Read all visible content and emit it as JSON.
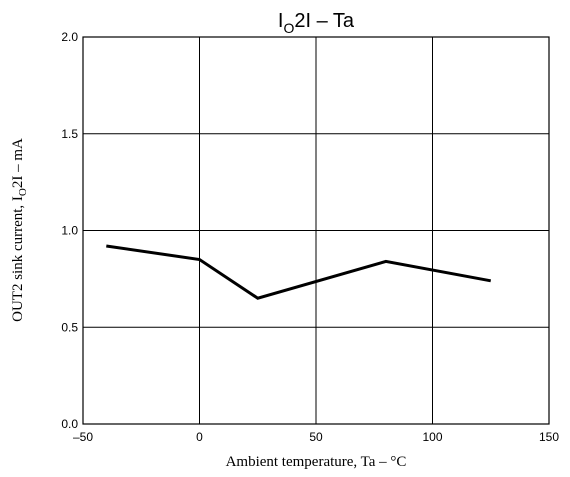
{
  "chart_data": {
    "type": "line",
    "title_parts": {
      "pre": "I",
      "sub": "O",
      "post": "2I  –  Ta"
    },
    "xlabel": "Ambient temperature,  Ta  –  °C",
    "ylabel_parts": {
      "pre": "OUT2 sink current, I",
      "sub": "O",
      "post": "2I  –  mA"
    },
    "xlim": [
      -50,
      150
    ],
    "ylim": [
      0.0,
      2.0
    ],
    "xticks": [
      -50,
      0,
      50,
      100,
      150
    ],
    "xtick_labels": [
      "–50",
      "0",
      "50",
      "100",
      "150"
    ],
    "yticks": [
      0.0,
      0.5,
      1.0,
      1.5,
      2.0
    ],
    "ytick_labels": [
      "0.0",
      "0.5",
      "1.0",
      "1.5",
      "2.0"
    ],
    "grid": true,
    "series": [
      {
        "x": [
          -40,
          0,
          25,
          80,
          125
        ],
        "y": [
          0.92,
          0.85,
          0.65,
          0.84,
          0.74
        ]
      }
    ]
  }
}
